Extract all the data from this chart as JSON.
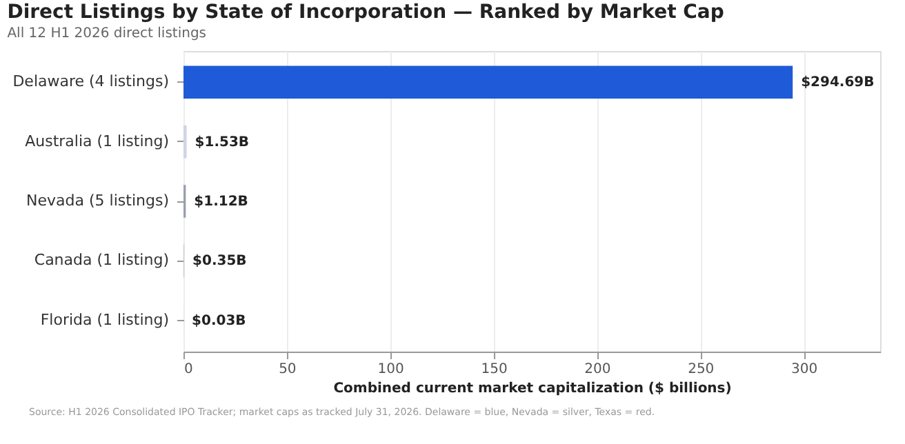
{
  "chart_data": {
    "type": "bar",
    "orientation": "horizontal",
    "title": "Direct Listings by State of Incorporation — Ranked by Market Cap",
    "subtitle": "All 12 H1 2026 direct listings",
    "xlabel": "Combined current market capitalization ($ billions)",
    "categories": [
      "Delaware  (4 listings)",
      "Australia  (1 listing)",
      "Nevada  (5 listings)",
      "Canada  (1 listing)",
      "Florida  (1 listing)"
    ],
    "values": [
      294.69,
      1.53,
      1.12,
      0.35,
      0.03
    ],
    "colors": [
      "#1f5bd8",
      "#d0d4e4",
      "#9aa0a8",
      "#c0c4cc",
      "#c0c4cc"
    ],
    "value_labels": [
      "$294.69B",
      "$1.53B",
      "$1.12B",
      "$0.35B",
      "$0.03B"
    ],
    "xlim": [
      0,
      337
    ],
    "xticks": [
      0,
      50,
      100,
      150,
      200,
      250,
      300
    ],
    "grid": "x",
    "annotations": [
      "Source: H1 2026 Consolidated IPO Tracker; market caps as tracked July 31, 2026. Delaware = blue, Nevada = silver, Texas = red."
    ]
  }
}
